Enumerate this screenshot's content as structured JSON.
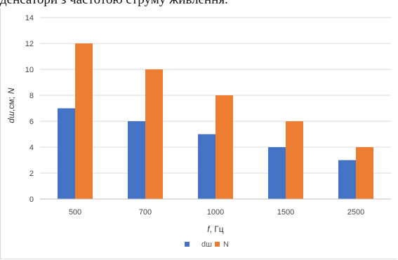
{
  "heading_fragment": "денсатори з частотою струму живлення.",
  "chart_data": {
    "type": "bar",
    "categories": [
      "500",
      "700",
      "1000",
      "1500",
      "2500"
    ],
    "series": [
      {
        "name": "dш",
        "values": [
          7,
          6,
          5,
          4,
          3
        ],
        "color": "#4472c4"
      },
      {
        "name": "N",
        "values": [
          12,
          10,
          8,
          6,
          4
        ],
        "color": "#ed7d31"
      }
    ],
    "xlabel_italic": "f",
    "xlabel_rest": ", Гц",
    "ylabel_italic_1": "dш",
    "ylabel_rest": ",см;",
    "ylabel_italic_2": "N",
    "ylim": [
      0,
      14
    ],
    "y_ticks": [
      "0",
      "2",
      "4",
      "6",
      "8",
      "10",
      "12",
      "14"
    ],
    "grid": true,
    "legend_position": "bottom"
  }
}
